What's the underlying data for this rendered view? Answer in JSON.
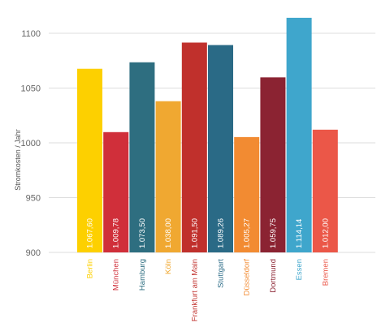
{
  "chart_data": {
    "type": "bar",
    "title": "",
    "xlabel": "",
    "ylabel": "Stromkosten / Jahr",
    "ylim": [
      900,
      1120
    ],
    "yticks": [
      900,
      950,
      1000,
      1050,
      1100
    ],
    "grid": true,
    "legend": "none",
    "categories": [
      "Berlin",
      "München",
      "Hamburg",
      "Köln",
      "Frankfurt am Main",
      "Stuttgart",
      "Düsseldorf",
      "Dortmund",
      "Essen",
      "Bremen"
    ],
    "values": [
      1067.6,
      1009.78,
      1073.5,
      1038.0,
      1091.5,
      1089.26,
      1005.27,
      1059.75,
      1114.14,
      1012.0
    ],
    "value_labels": [
      "1.067,60",
      "1.009,78",
      "1.073,50",
      "1.038,00",
      "1.091,50",
      "1.089,26",
      "1.005,27",
      "1.059,75",
      "1.114,14",
      "1.012,00"
    ],
    "colors": [
      "#fdd000",
      "#d02f3a",
      "#2e6e80",
      "#f0a831",
      "#c0302c",
      "#2a6a86",
      "#f28b32",
      "#8b2332",
      "#3fa6cc",
      "#eb5748"
    ]
  }
}
